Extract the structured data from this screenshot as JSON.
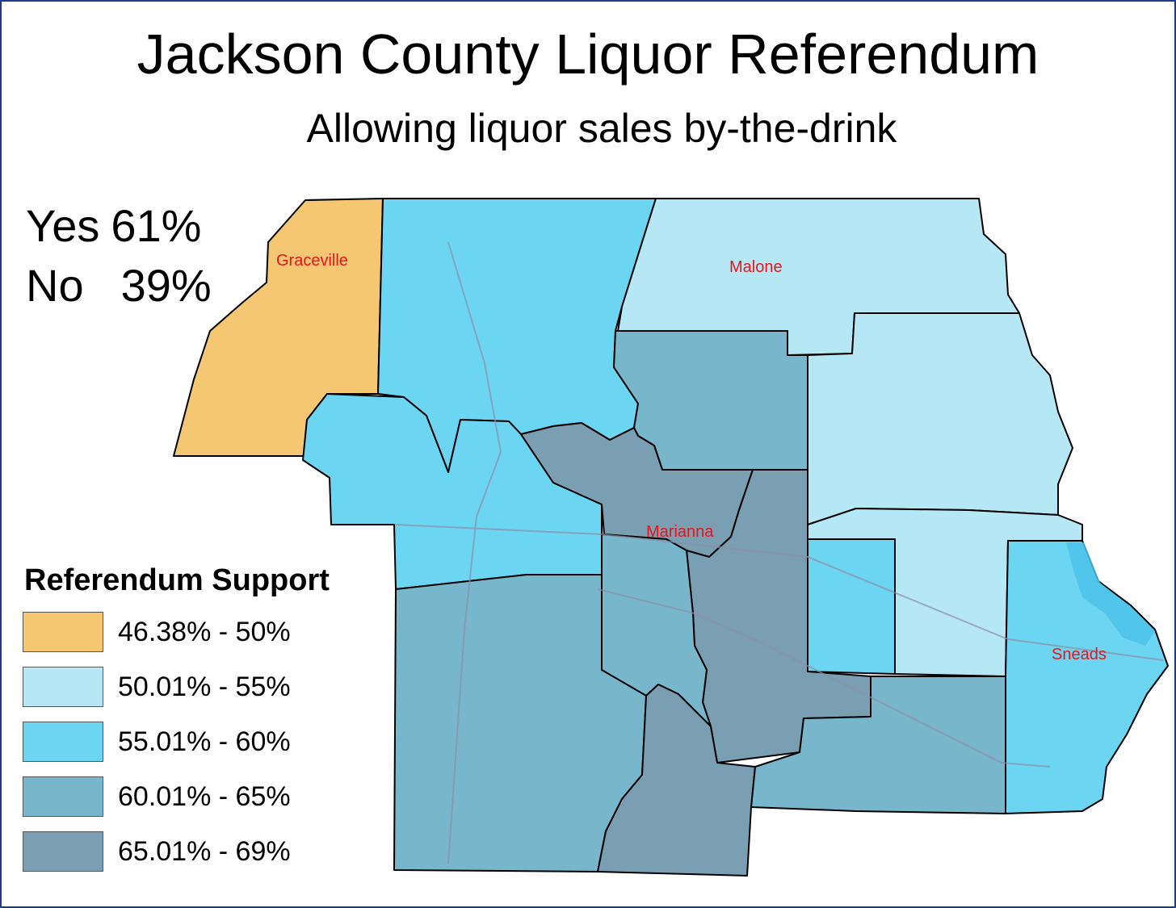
{
  "title": "Jackson County Liquor Referendum",
  "subtitle": "Allowing liquor sales by-the-drink",
  "results": {
    "yes_label": "Yes",
    "yes_value": "61%",
    "no_label": "No",
    "no_value": "39%"
  },
  "legend": {
    "title": "Referendum Support",
    "items": [
      {
        "label": "46.38% - 50%",
        "color": "#f6c772"
      },
      {
        "label": "50.01% - 55%",
        "color": "#b6e7f5"
      },
      {
        "label": "55.01% - 60%",
        "color": "#6cd5f1"
      },
      {
        "label": "60.01% - 65%",
        "color": "#77b6cb"
      },
      {
        "label": "65.01% - 69%",
        "color": "#7a9fb2"
      }
    ]
  },
  "towns": [
    "Graceville",
    "Malone",
    "Marianna",
    "Sneads"
  ],
  "colors": {
    "frame": "#1f3c8a",
    "town_label": "#e8141b",
    "lake": "#4cc3e9"
  }
}
